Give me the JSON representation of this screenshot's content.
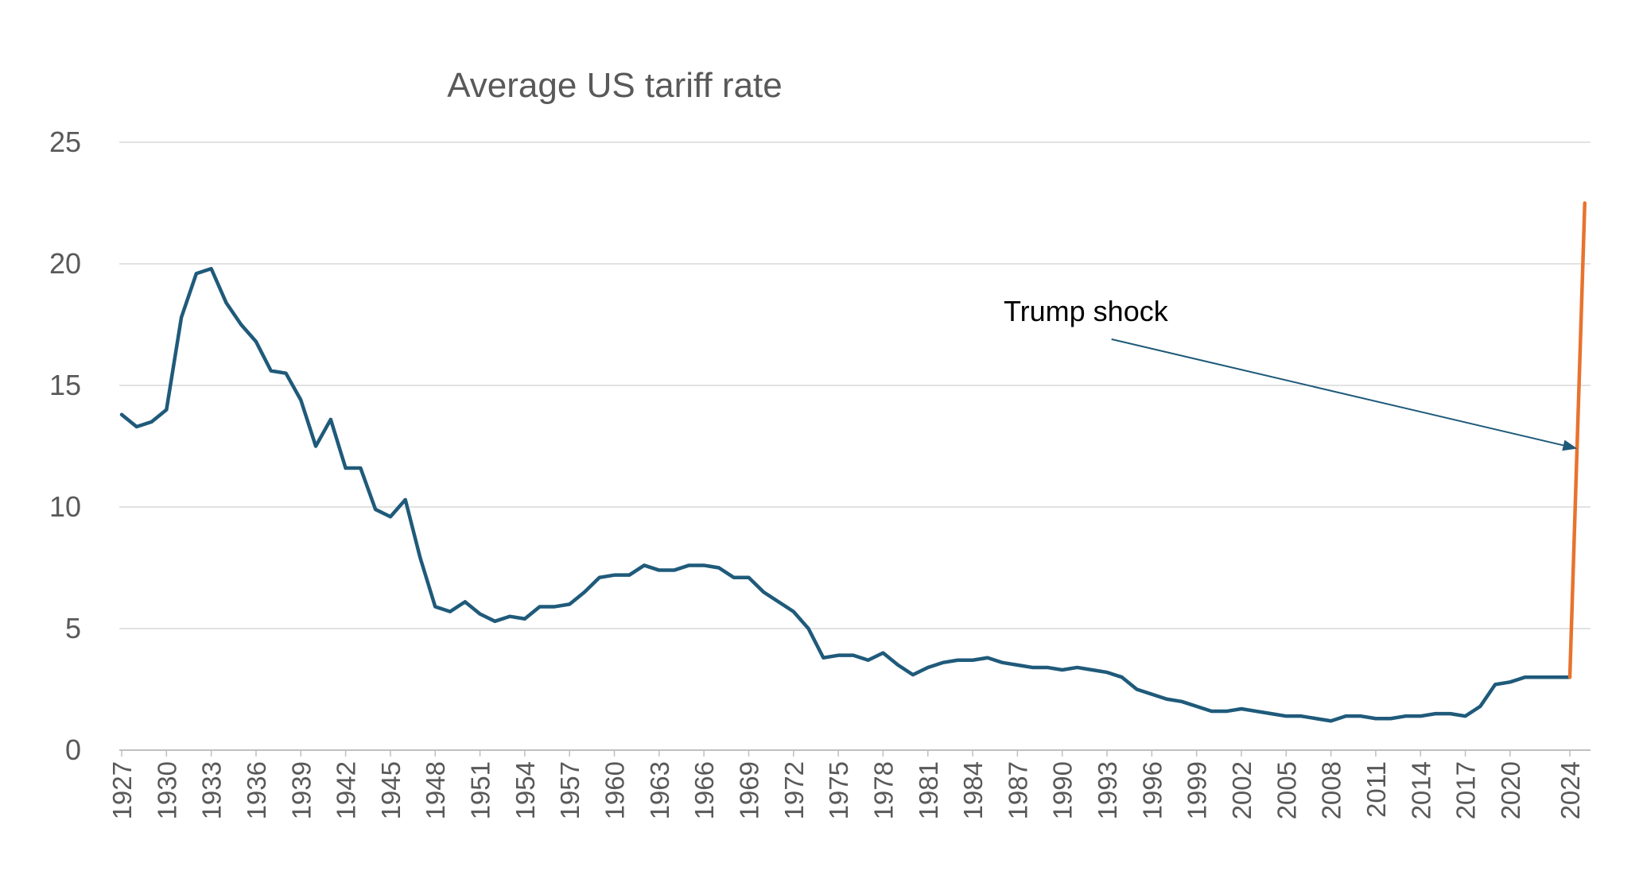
{
  "chart_data": {
    "type": "line",
    "title": "Average US tariff rate",
    "xlabel": "",
    "ylabel": "",
    "ylim": [
      0,
      25
    ],
    "yticks": [
      0,
      5,
      10,
      15,
      20,
      25
    ],
    "grid": true,
    "legend": "none",
    "xtick_labels": [
      "1927",
      "1930",
      "1933",
      "1936",
      "1939",
      "1942",
      "1945",
      "1948",
      "1951",
      "1954",
      "1957",
      "1960",
      "1963",
      "1966",
      "1969",
      "1972",
      "1975",
      "1978",
      "1981",
      "1984",
      "1987",
      "1990",
      "1993",
      "1996",
      "1999",
      "2002",
      "2005",
      "2008",
      "2011",
      "2014",
      "2017",
      "2020",
      "2024"
    ],
    "x": [
      1927,
      1928,
      1929,
      1930,
      1931,
      1932,
      1933,
      1934,
      1935,
      1936,
      1937,
      1938,
      1939,
      1940,
      1941,
      1942,
      1943,
      1944,
      1945,
      1946,
      1947,
      1948,
      1949,
      1950,
      1951,
      1952,
      1953,
      1954,
      1955,
      1956,
      1957,
      1958,
      1959,
      1960,
      1961,
      1962,
      1963,
      1964,
      1965,
      1966,
      1967,
      1968,
      1969,
      1970,
      1971,
      1972,
      1973,
      1974,
      1975,
      1976,
      1977,
      1978,
      1979,
      1980,
      1981,
      1982,
      1983,
      1984,
      1985,
      1986,
      1987,
      1988,
      1989,
      1990,
      1991,
      1992,
      1993,
      1994,
      1995,
      1996,
      1997,
      1998,
      1999,
      2000,
      2001,
      2002,
      2003,
      2004,
      2005,
      2006,
      2007,
      2008,
      2009,
      2010,
      2011,
      2012,
      2013,
      2014,
      2015,
      2016,
      2017,
      2018,
      2019,
      2020,
      2021,
      2022,
      2023,
      2024
    ],
    "series": [
      {
        "values": [
          13.8,
          13.3,
          13.5,
          14.0,
          17.8,
          19.6,
          19.8,
          18.4,
          17.5,
          16.8,
          15.6,
          15.5,
          14.4,
          12.5,
          13.6,
          11.6,
          11.6,
          9.9,
          9.6,
          10.3,
          7.9,
          5.9,
          5.7,
          6.1,
          5.6,
          5.3,
          5.5,
          5.4,
          5.9,
          5.9,
          6.0,
          6.5,
          7.1,
          7.2,
          7.2,
          7.6,
          7.4,
          7.4,
          7.6,
          7.6,
          7.5,
          7.1,
          7.1,
          6.5,
          6.1,
          5.7,
          5.0,
          3.8,
          3.9,
          3.9,
          3.7,
          4.0,
          3.5,
          3.1,
          3.4,
          3.6,
          3.7,
          3.7,
          3.8,
          3.6,
          3.5,
          3.4,
          3.4,
          3.3,
          3.4,
          3.3,
          3.2,
          3.0,
          2.5,
          2.3,
          2.1,
          2.0,
          1.8,
          1.6,
          1.6,
          1.7,
          1.6,
          1.5,
          1.4,
          1.4,
          1.3,
          1.2,
          1.4,
          1.4,
          1.3,
          1.3,
          1.4,
          1.4,
          1.5,
          1.5,
          1.4,
          1.8,
          2.7,
          2.8,
          3.0,
          3.0,
          3.0,
          3.0
        ],
        "color": "#1f5a7a"
      },
      {
        "x": [
          2024,
          2025
        ],
        "values": [
          3.0,
          22.5
        ],
        "color": "#e8732e"
      }
    ],
    "annotations": [
      {
        "text": "Trump shock",
        "arrow_from": [
          1993.3,
          16.9
        ],
        "arrow_to": [
          2024.5,
          12.4
        ],
        "color": "#1f5a7a"
      }
    ]
  }
}
